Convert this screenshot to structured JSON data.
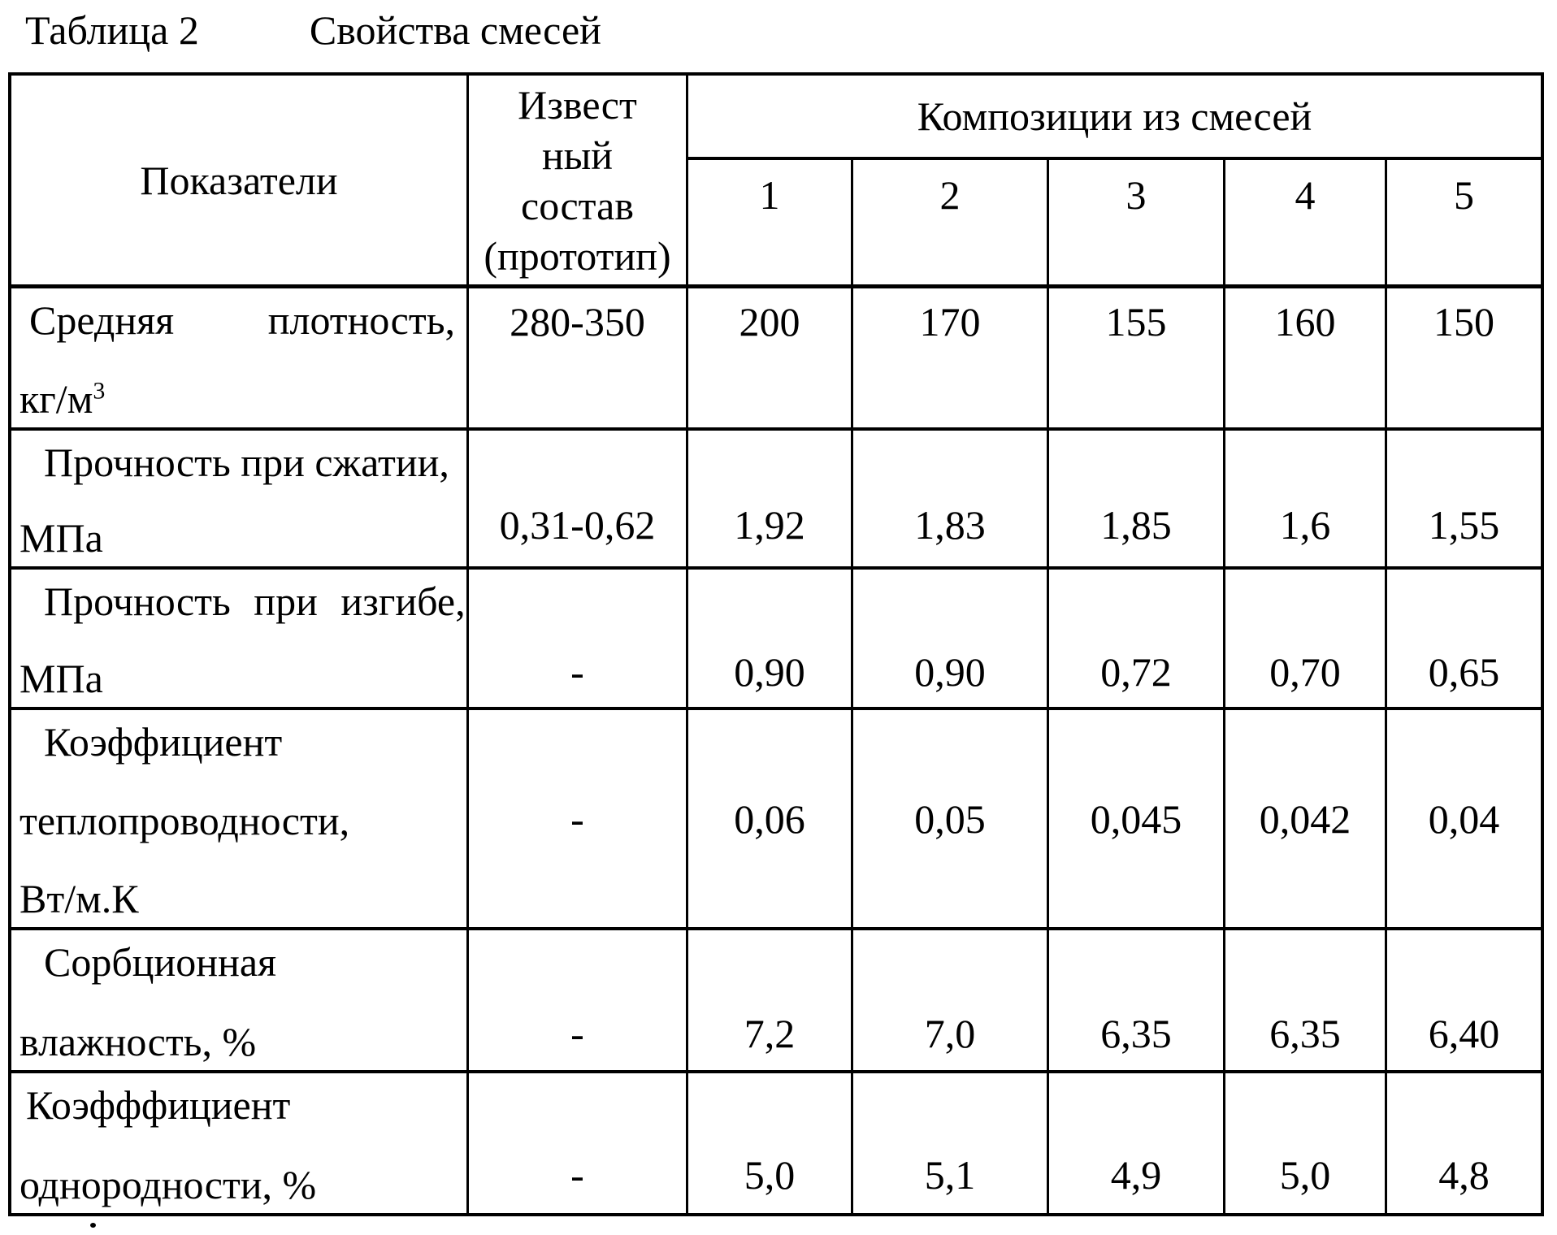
{
  "title": {
    "label": "Таблица 2",
    "caption": "Свойства смесей"
  },
  "table": {
    "header": {
      "indicators": "Показатели",
      "prototype_lines": [
        "Извест",
        "ный",
        "состав",
        "(прототип)"
      ],
      "compositions_group": "Композиции из смесей",
      "composition_numbers": [
        "1",
        "2",
        "3",
        "4",
        "5"
      ]
    },
    "rows": [
      {
        "indicator_word1": "Средняя",
        "indicator_word2": "плотность,",
        "unit_base": "кг/м",
        "unit_sup": "3",
        "prototype": "280-350",
        "values": [
          "200",
          "170",
          "155",
          "160",
          "150"
        ]
      },
      {
        "lines": [
          "Прочность при сжатии,",
          "МПа"
        ],
        "prototype": "0,31-0,62",
        "values": [
          "1,92",
          "1,83",
          "1,85",
          "1,6",
          "1,55"
        ]
      },
      {
        "lines": [
          "Прочность при изгибе,",
          "МПа"
        ],
        "prototype": "-",
        "values": [
          "0,90",
          "0,90",
          "0,72",
          "0,70",
          "0,65"
        ]
      },
      {
        "lines": [
          "Коэффициент",
          "теплопроводности,",
          "Вт/м.К"
        ],
        "prototype": "-",
        "values": [
          "0,06",
          "0,05",
          "0,045",
          "0,042",
          "0,04"
        ]
      },
      {
        "lines": [
          "Сорбционная",
          "влажность, %"
        ],
        "prototype": "-",
        "values": [
          "7,2",
          "7,0",
          "6,35",
          "6,35",
          "6,40"
        ]
      },
      {
        "lines": [
          "Коэфффициент",
          "однородности, %"
        ],
        "prototype": "-",
        "values": [
          "5,0",
          "5,1",
          "4,9",
          "5,0",
          "4,8"
        ]
      }
    ]
  }
}
